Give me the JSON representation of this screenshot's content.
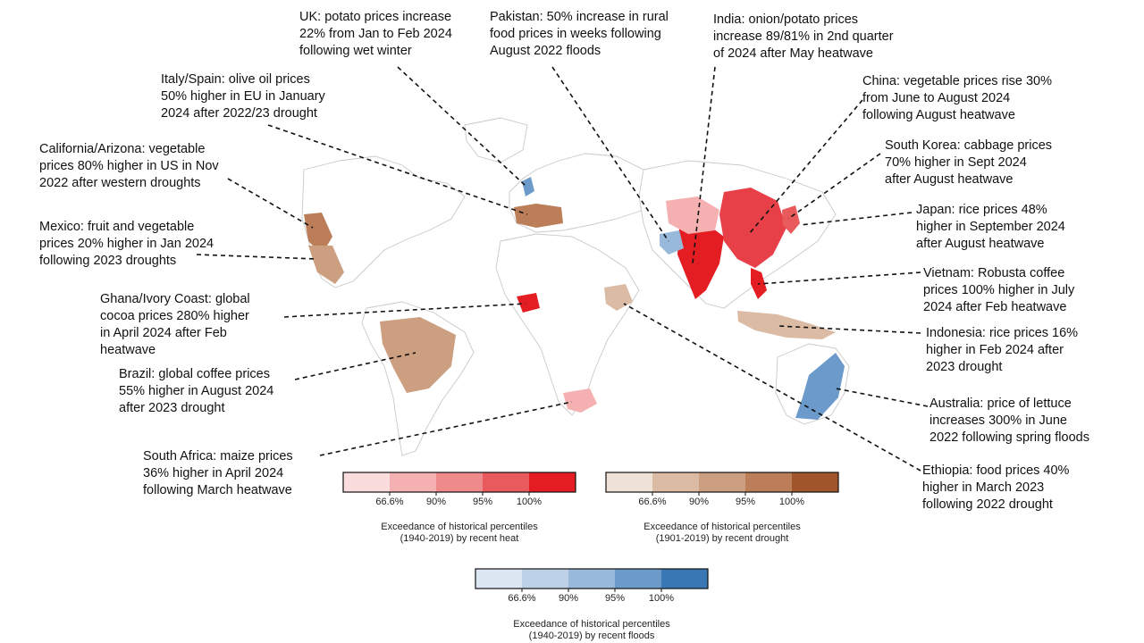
{
  "annotations": {
    "uk": [
      "UK: potato prices increase",
      "22% from Jan to Feb 2024",
      "following wet winter"
    ],
    "pakistan": [
      "Pakistan: 50% increase in rural",
      "food prices in weeks following",
      "August 2022 floods"
    ],
    "india": [
      "India: onion/potato prices",
      "increase 89/81% in 2nd quarter",
      "of 2024 after May heatwave"
    ],
    "italy_spain": [
      "Italy/Spain: olive oil prices",
      "50% higher in EU in January",
      "2024 after 2022/23 drought"
    ],
    "china": [
      "China: vegetable prices rise 30%",
      "from June to August 2024",
      "following August heatwave"
    ],
    "california": [
      "California/Arizona: vegetable",
      "prices 80% higher in US in Nov",
      "2022 after western droughts"
    ],
    "south_korea": [
      "South Korea: cabbage prices",
      "70% higher in Sept 2024",
      "after August heatwave"
    ],
    "mexico": [
      "Mexico: fruit and vegetable",
      "prices 20% higher in Jan 2024",
      "following 2023 droughts"
    ],
    "japan": [
      "Japan: rice prices 48%",
      "higher in September 2024",
      "after August heatwave"
    ],
    "vietnam": [
      "Vietnam: Robusta coffee",
      "prices 100% higher in July",
      "2024 after Feb heatwave"
    ],
    "ghana": [
      "Ghana/Ivory Coast: global",
      "cocoa prices 280% higher",
      "in April 2024 after Feb",
      "heatwave"
    ],
    "indonesia": [
      "Indonesia: rice prices 16%",
      "higher in Feb 2024 after",
      "2023 drought"
    ],
    "brazil": [
      "Brazil: global coffee prices",
      "55% higher in August 2024",
      "after 2023 drought"
    ],
    "australia": [
      "Australia: price of lettuce",
      "increases 300% in June",
      "2022 following spring floods"
    ],
    "south_africa": [
      "South Africa: maize prices",
      "36% higher in April 2024",
      "following March heatwave"
    ],
    "ethiopia": [
      "Ethiopia: food prices 40%",
      "higher in March 2023",
      "following 2022 drought"
    ]
  },
  "legends": {
    "heat": {
      "ticks": [
        "66.6%",
        "90%",
        "95%",
        "100%"
      ],
      "colors": [
        "#fbdcdc",
        "#f5b0b2",
        "#ef8a8c",
        "#e85a5c",
        "#e41d23"
      ],
      "label": [
        "Exceedance of historical percentiles",
        "(1940-2019) by recent heat"
      ]
    },
    "drought": {
      "ticks": [
        "66.6%",
        "90%",
        "95%",
        "100%"
      ],
      "colors": [
        "#f1e2d8",
        "#dcbba5",
        "#cc9f81",
        "#bb7e59",
        "#a0552a"
      ],
      "label": [
        "Exceedance of historical percentiles",
        "(1901-2019) by recent drought"
      ]
    },
    "floods": {
      "ticks": [
        "66.6%",
        "90%",
        "95%",
        "100%"
      ],
      "colors": [
        "#dce7f3",
        "#bdd2e8",
        "#98b9da",
        "#6b9acb",
        "#3977b5"
      ],
      "label": [
        "Exceedance of historical percentiles",
        "(1940-2019) by recent floods"
      ]
    }
  }
}
